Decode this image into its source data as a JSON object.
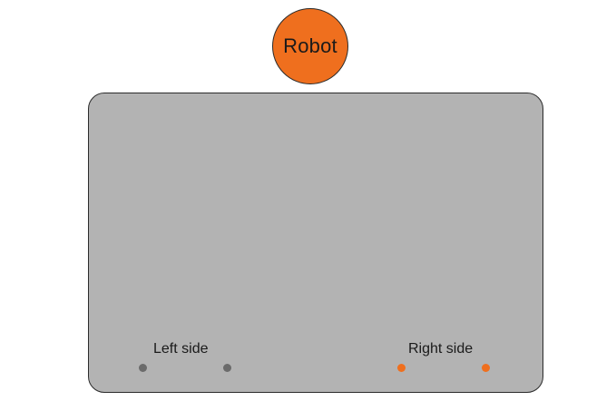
{
  "robot": {
    "label": "Robot"
  },
  "board": {
    "left_side_label": "Left side",
    "right_side_label": "Right side"
  },
  "colors": {
    "robot_fill": "#ef6f1e",
    "board_fill": "#b3b3b3",
    "left_marker": "#6b6b6b",
    "right_marker": "#ef6f1e"
  }
}
